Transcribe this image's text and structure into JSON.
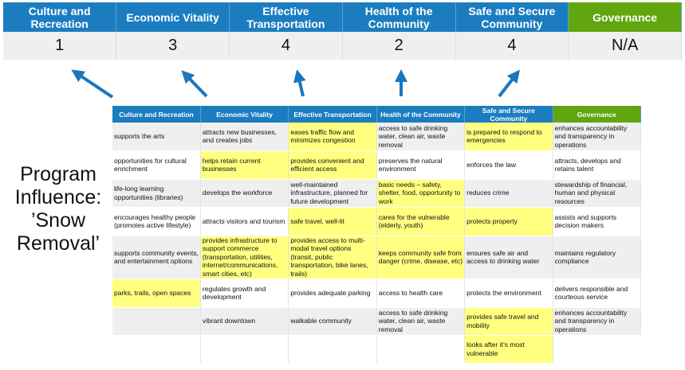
{
  "scores": {
    "headers": [
      "Culture and Recreation",
      "Economic Vitality",
      "Effective Transportation",
      "Health of the Community",
      "Safe and Secure Community",
      "Governance"
    ],
    "values": [
      "1",
      "3",
      "4",
      "2",
      "4",
      "N/A"
    ]
  },
  "program_label": "Program Influence: ’Snow Removal’",
  "colors": {
    "header_blue": "#1b7dc0",
    "governance_green": "#61a60e",
    "highlight_yellow": "#ffff80",
    "arrow_blue": "#1a77bf"
  },
  "matrix": {
    "headers": [
      "Culture and Recreation",
      "Economic Vitality",
      "Effective Transportation",
      "Health of the Community",
      "Safe and Secure Community",
      "Governance"
    ],
    "rows": [
      {
        "cells": [
          "supports the arts",
          "attracts new businesses, and creates jobs",
          "eases traffic flow and minimizes congestion",
          "access to safe drinking water, clean air, waste removal",
          "is prepared to respond to emergencies",
          "enhances accountability and transparency in operations"
        ],
        "highlight": [
          0,
          0,
          1,
          0,
          1,
          0
        ]
      },
      {
        "cells": [
          "opportunities for cultural enrichment",
          "helps retain current businesses",
          "provides convenient and efficient access",
          "preserves the natural environment",
          "enforces the law",
          "attracts, develops and retains talent"
        ],
        "highlight": [
          0,
          1,
          1,
          0,
          0,
          0
        ]
      },
      {
        "cells": [
          "life-long learning opportunities (libraries)",
          "develops the workforce",
          "well-maintained infrastructure, planned for future development",
          "basic needs – safety, shelter, food, opportunity to work",
          "reduces crime",
          "stewardship of financial, human and physical resources"
        ],
        "highlight": [
          0,
          0,
          0,
          1,
          0,
          0
        ]
      },
      {
        "cells": [
          "encourages healthy people (promotes active lifestyle)",
          "attracts visitors and tourism",
          "safe travel, well-lit",
          "cares for the vulnerable (elderly, youth)",
          "protects property",
          "assists and supports decision makers"
        ],
        "highlight": [
          0,
          0,
          1,
          1,
          1,
          0
        ]
      },
      {
        "cells": [
          "supports community events, and entertainment options",
          "provides infrastructure to support commerce (transportation, utilities, internet/communications, smart cities, etc)",
          "provides access to multi-modal travel options (transit, public transportation, bike lanes, trails)",
          "keeps community safe from danger (crime, disease, etc)",
          "ensures safe air and access to drinking water",
          "maintains regulatory compliance"
        ],
        "highlight": [
          0,
          1,
          1,
          1,
          0,
          0
        ]
      },
      {
        "cells": [
          "parks, trails, open spaces",
          "regulates growth and development",
          "provides adequate parking",
          "access to health care",
          "protects the environment",
          "delivers responsible and courteous service"
        ],
        "highlight": [
          1,
          0,
          0,
          0,
          0,
          0
        ]
      },
      {
        "cells": [
          "",
          "vibrant downtown",
          "walkable community",
          "access to safe drinking water, clean air, waste removal",
          "provides safe travel and mobility",
          "enhances accountability and transparency in operations"
        ],
        "highlight": [
          0,
          0,
          0,
          0,
          1,
          0
        ]
      },
      {
        "cells": [
          "",
          "",
          "",
          "",
          "looks after it’s most vulnerable",
          ""
        ],
        "highlight": [
          0,
          0,
          0,
          0,
          1,
          0
        ]
      }
    ]
  }
}
